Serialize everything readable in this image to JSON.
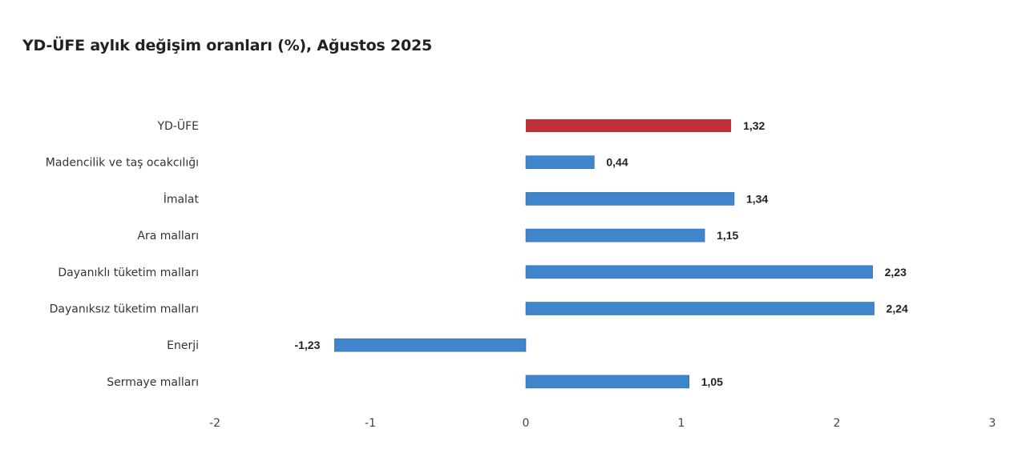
{
  "chart_data": {
    "type": "bar",
    "orientation": "horizontal",
    "title": "YD-ÜFE aylık değişim oranları (%), Ağustos 2025",
    "categories": [
      "YD-ÜFE",
      "Madencilik ve taş ocakcılığı",
      "İmalat",
      "Ara malları",
      "Dayanıklı tüketim malları",
      "Dayanıksız tüketim malları",
      "Enerji",
      "Sermaye malları"
    ],
    "values": [
      1.32,
      0.44,
      1.34,
      1.15,
      2.23,
      2.24,
      -1.23,
      1.05
    ],
    "value_labels": [
      "1,32",
      "0,44",
      "1,34",
      "1,15",
      "2,23",
      "2,24",
      "-1,23",
      "1,05"
    ],
    "x_ticks": [
      -2,
      -1,
      0,
      1,
      2,
      3
    ],
    "x_tick_labels": [
      "-2",
      "-1",
      "0",
      "1",
      "2",
      "3"
    ],
    "xlim": [
      -2,
      3
    ],
    "grid": false,
    "legend": "none",
    "colors": {
      "highlight": "#c0303a",
      "default": "#3f86cc"
    },
    "highlight_index": 0
  }
}
